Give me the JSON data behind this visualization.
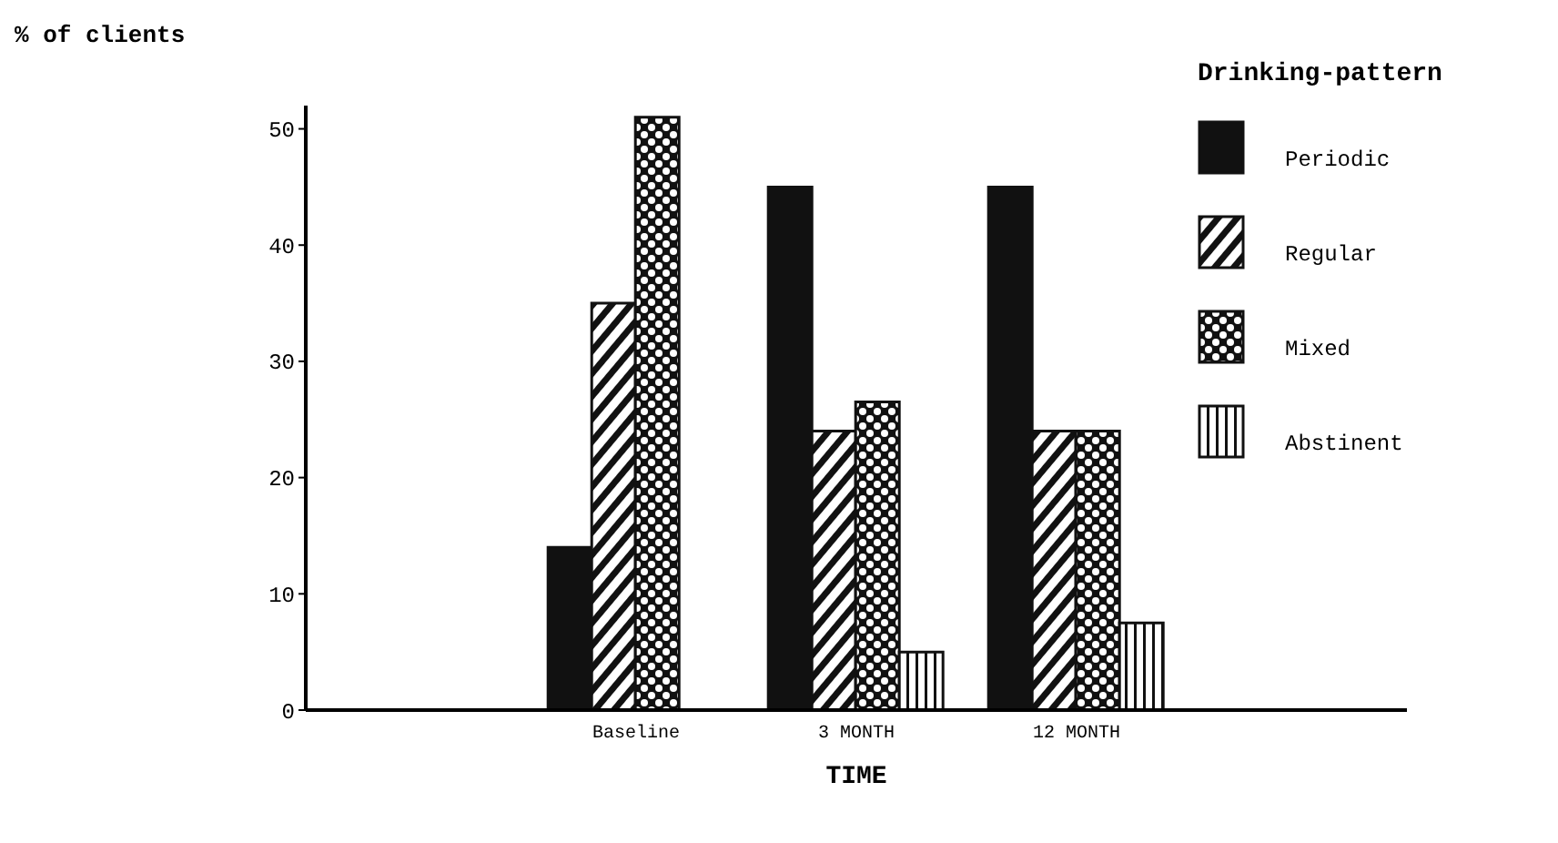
{
  "chart_data": {
    "type": "bar",
    "ylabel": "% of clients",
    "xlabel": "TIME",
    "legend_title": "Drinking-pattern",
    "categories": [
      null,
      "Baseline",
      "3 MONTH",
      "12 MONTH",
      null
    ],
    "series": [
      {
        "name": "Periodic",
        "color": "#111111",
        "values": [
          null,
          14,
          45,
          45,
          null
        ]
      },
      {
        "name": "Regular",
        "color": "#111111",
        "values": [
          null,
          35,
          24,
          24,
          null
        ]
      },
      {
        "name": "Mixed",
        "color": "#111111",
        "values": [
          null,
          51,
          26.5,
          24,
          null
        ]
      },
      {
        "name": "Abstinent",
        "color": "#111111",
        "values": [
          null,
          0,
          5,
          7.5,
          null
        ]
      }
    ],
    "ylim": [
      0,
      52
    ],
    "yticks": [
      0,
      10,
      20,
      30,
      40,
      50
    ],
    "grid": false,
    "legend": "top right"
  }
}
